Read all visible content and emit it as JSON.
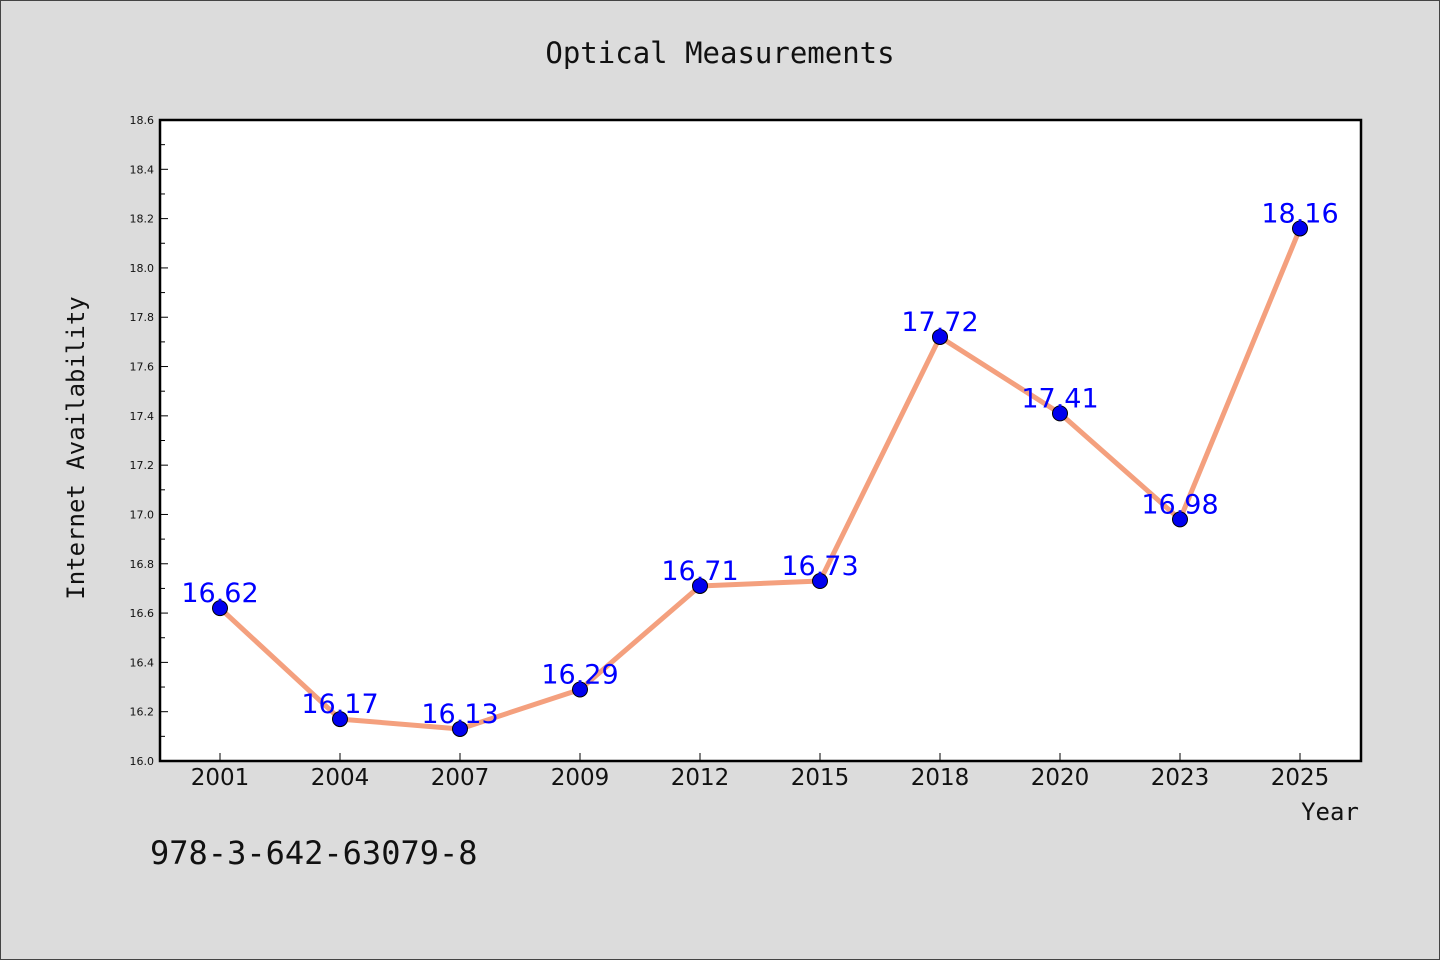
{
  "chart_data": {
    "type": "line",
    "title": "Optical Measurements",
    "xlabel": "Year",
    "ylabel": "Internet Availability",
    "categories": [
      "2001",
      "2004",
      "2007",
      "2009",
      "2012",
      "2015",
      "2018",
      "2020",
      "2023",
      "2025"
    ],
    "series": [
      {
        "values": [
          16.62,
          16.17,
          16.13,
          16.29,
          16.71,
          16.73,
          17.72,
          17.41,
          16.98,
          18.16
        ],
        "line_color": "#f4a07e",
        "marker_color": "#0000ee"
      }
    ],
    "ylim": [
      16.0,
      18.6
    ],
    "yticks": [
      "16.0",
      "16.2",
      "16.4",
      "16.6",
      "16.8",
      "17.0",
      "17.2",
      "17.4",
      "17.6",
      "17.8",
      "18.0",
      "18.2",
      "18.4",
      "18.6"
    ],
    "data_labels": [
      "16.62",
      "16.17",
      "16.13",
      "16.29",
      "16.71",
      "16.73",
      "17.72",
      "17.41",
      "16.98",
      "18.16"
    ],
    "grid": false,
    "legend": "none"
  },
  "footer": {
    "isbn": "978-3-642-63079-8"
  }
}
